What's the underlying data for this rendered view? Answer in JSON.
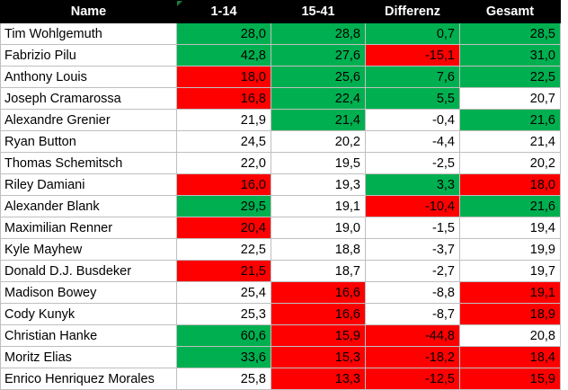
{
  "colors": {
    "header_bg": "#000000",
    "header_fg": "#ffffff",
    "green": "#00b050",
    "red": "#ff0000",
    "white": "#ffffff",
    "grid": "#bfbfbf",
    "comment_marker": "#1d7a3a"
  },
  "headers": [
    "Name",
    "1-14",
    "15-41",
    "Differenz",
    "Gesamt"
  ],
  "rows": [
    {
      "name": "Tim Wohlgemuth",
      "cells": [
        {
          "v": "28,0",
          "c": "green"
        },
        {
          "v": "28,8",
          "c": "green"
        },
        {
          "v": "0,7",
          "c": "green"
        },
        {
          "v": "28,5",
          "c": "green"
        }
      ]
    },
    {
      "name": "Fabrizio Pilu",
      "cells": [
        {
          "v": "42,8",
          "c": "green"
        },
        {
          "v": "27,6",
          "c": "green"
        },
        {
          "v": "-15,1",
          "c": "red"
        },
        {
          "v": "31,0",
          "c": "green"
        }
      ]
    },
    {
      "name": "Anthony Louis",
      "cells": [
        {
          "v": "18,0",
          "c": "red"
        },
        {
          "v": "25,6",
          "c": "green"
        },
        {
          "v": "7,6",
          "c": "green"
        },
        {
          "v": "22,5",
          "c": "green"
        }
      ]
    },
    {
      "name": "Joseph Cramarossa",
      "cells": [
        {
          "v": "16,8",
          "c": "red"
        },
        {
          "v": "22,4",
          "c": "green"
        },
        {
          "v": "5,5",
          "c": "green"
        },
        {
          "v": "20,7",
          "c": "white"
        }
      ]
    },
    {
      "name": "Alexandre Grenier",
      "cells": [
        {
          "v": "21,9",
          "c": "white"
        },
        {
          "v": "21,4",
          "c": "green"
        },
        {
          "v": "-0,4",
          "c": "white"
        },
        {
          "v": "21,6",
          "c": "green"
        }
      ]
    },
    {
      "name": "Ryan Button",
      "cells": [
        {
          "v": "24,5",
          "c": "white"
        },
        {
          "v": "20,2",
          "c": "white"
        },
        {
          "v": "-4,4",
          "c": "white"
        },
        {
          "v": "21,4",
          "c": "white"
        }
      ]
    },
    {
      "name": "Thomas Schemitsch",
      "cells": [
        {
          "v": "22,0",
          "c": "white"
        },
        {
          "v": "19,5",
          "c": "white"
        },
        {
          "v": "-2,5",
          "c": "white"
        },
        {
          "v": "20,2",
          "c": "white"
        }
      ]
    },
    {
      "name": "Riley Damiani",
      "cells": [
        {
          "v": "16,0",
          "c": "red"
        },
        {
          "v": "19,3",
          "c": "white"
        },
        {
          "v": "3,3",
          "c": "green"
        },
        {
          "v": "18,0",
          "c": "red"
        }
      ]
    },
    {
      "name": "Alexander Blank",
      "cells": [
        {
          "v": "29,5",
          "c": "green"
        },
        {
          "v": "19,1",
          "c": "white"
        },
        {
          "v": "-10,4",
          "c": "red"
        },
        {
          "v": "21,6",
          "c": "green"
        }
      ]
    },
    {
      "name": "Maximilian Renner",
      "cells": [
        {
          "v": "20,4",
          "c": "red"
        },
        {
          "v": "19,0",
          "c": "white"
        },
        {
          "v": "-1,5",
          "c": "white"
        },
        {
          "v": "19,4",
          "c": "white"
        }
      ]
    },
    {
      "name": "Kyle Mayhew",
      "cells": [
        {
          "v": "22,5",
          "c": "white"
        },
        {
          "v": "18,8",
          "c": "white"
        },
        {
          "v": "-3,7",
          "c": "white"
        },
        {
          "v": "19,9",
          "c": "white"
        }
      ]
    },
    {
      "name": "Donald D.J. Busdeker",
      "cells": [
        {
          "v": "21,5",
          "c": "red"
        },
        {
          "v": "18,7",
          "c": "white"
        },
        {
          "v": "-2,7",
          "c": "white"
        },
        {
          "v": "19,7",
          "c": "white"
        }
      ]
    },
    {
      "name": "Madison Bowey",
      "cells": [
        {
          "v": "25,4",
          "c": "white"
        },
        {
          "v": "16,6",
          "c": "red"
        },
        {
          "v": "-8,8",
          "c": "white"
        },
        {
          "v": "19,1",
          "c": "red"
        }
      ]
    },
    {
      "name": "Cody Kunyk",
      "cells": [
        {
          "v": "25,3",
          "c": "white"
        },
        {
          "v": "16,6",
          "c": "red"
        },
        {
          "v": "-8,7",
          "c": "white"
        },
        {
          "v": "18,9",
          "c": "red"
        }
      ]
    },
    {
      "name": "Christian Hanke",
      "cells": [
        {
          "v": "60,6",
          "c": "green"
        },
        {
          "v": "15,9",
          "c": "red"
        },
        {
          "v": "-44,8",
          "c": "red"
        },
        {
          "v": "20,8",
          "c": "white"
        }
      ]
    },
    {
      "name": "Moritz Elias",
      "cells": [
        {
          "v": "33,6",
          "c": "green"
        },
        {
          "v": "15,3",
          "c": "red"
        },
        {
          "v": "-18,2",
          "c": "red"
        },
        {
          "v": "18,4",
          "c": "red"
        }
      ]
    },
    {
      "name": "Enrico Henriquez Morales",
      "cells": [
        {
          "v": "25,8",
          "c": "white"
        },
        {
          "v": "13,3",
          "c": "red"
        },
        {
          "v": "-12,5",
          "c": "red"
        },
        {
          "v": "15,9",
          "c": "red"
        }
      ]
    }
  ]
}
